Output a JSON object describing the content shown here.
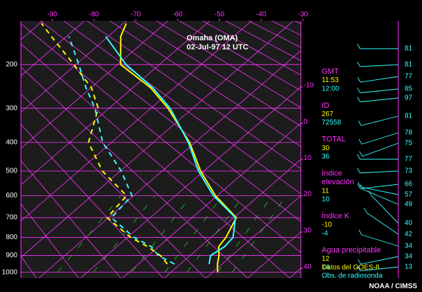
{
  "chart_data": {
    "type": "skewt",
    "title": "Omaha (OMA)",
    "subtitle": "02-Jul-97 12 UTC",
    "xlim": [
      -97.5,
      -30.5
    ],
    "xticks": [
      -90,
      -80,
      -70,
      -60,
      -50,
      -40,
      -30
    ],
    "isotherm_labels": [
      -10,
      0,
      10,
      20,
      30,
      40
    ],
    "ylim": [
      1050,
      115
    ],
    "yscale": "exner",
    "yticks": [
      200,
      300,
      400,
      500,
      600,
      700,
      800,
      900,
      1000
    ],
    "series": [
      {
        "name": "Datos del GOES-8",
        "color": "#ffff00",
        "pressure": [
          1000,
          950,
          900,
          850,
          800,
          700,
          600,
          500,
          400,
          300,
          250,
          200,
          150,
          130
        ],
        "temperature": [
          21.2,
          18.9,
          16.9,
          14.4,
          13.6,
          10.6,
          -0.4,
          -10.8,
          -21.3,
          -35.9,
          -45.6,
          -59.3,
          -67,
          -69.3
        ],
        "dewpoint": [
          null,
          6.9,
          2.9,
          -2.6,
          -9.2,
          -20.3,
          -21.7,
          -34.3,
          -45.5,
          -52.6,
          -59.8,
          -70.5,
          -83.6,
          -89.6
        ]
      },
      {
        "name": "Obs. de radiosonda",
        "color": "#33ffff",
        "pressure": [
          950,
          900,
          850,
          800,
          700,
          600,
          500,
          400,
          300,
          250,
          200,
          150
        ],
        "temperature": [
          16.9,
          14.9,
          15.8,
          15.3,
          10.4,
          -0.9,
          -11.3,
          -21.6,
          -35.4,
          -45.1,
          -58,
          -70.6
        ],
        "dewpoint": [
          8.6,
          2.4,
          -1.7,
          -8.4,
          -19.3,
          -20.4,
          -29.8,
          -42.1,
          -53.4,
          -61.1,
          -69.3,
          -79.4
        ]
      }
    ],
    "indices": [
      {
        "label": [
          "GMT"
        ],
        "values": [
          "11:53",
          "12:00"
        ]
      },
      {
        "label": [
          "ID"
        ],
        "values": [
          267,
          72558
        ]
      },
      {
        "label": [
          "TOTAL"
        ],
        "values": [
          30,
          36
        ]
      },
      {
        "label": [
          "Índice",
          "elevación"
        ],
        "values": [
          11,
          10
        ]
      },
      {
        "label": [
          "Índice K"
        ],
        "values": [
          -10,
          -4
        ]
      },
      {
        "label": [
          "Agua precipitable"
        ],
        "values": [
          12,
          14
        ]
      }
    ],
    "wind_labels": [
      81,
      81,
      77,
      85,
      97,
      81,
      78,
      75,
      77,
      73,
      66,
      57,
      49,
      40,
      42,
      34,
      34,
      13
    ],
    "credit": "NOAA / CIMSS"
  }
}
